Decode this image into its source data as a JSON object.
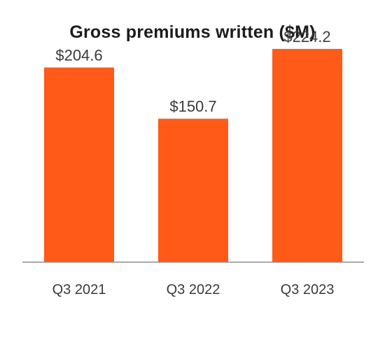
{
  "chart_data": {
    "type": "bar",
    "title": "Gross premiums written ($M)",
    "categories": [
      "Q3 2021",
      "Q3 2022",
      "Q3 2023"
    ],
    "values": [
      204.6,
      150.7,
      224.2
    ],
    "value_labels": [
      "$204.6",
      "$150.7",
      "$224.2"
    ],
    "xlabel": "",
    "ylabel": "",
    "ylim": [
      0,
      230
    ],
    "grid": false,
    "legend": "none",
    "colors": {
      "bar": "#ff5a17",
      "axis": "#8a8a8a",
      "text": "#3a3a3a",
      "title": "#1c1c1c"
    }
  }
}
